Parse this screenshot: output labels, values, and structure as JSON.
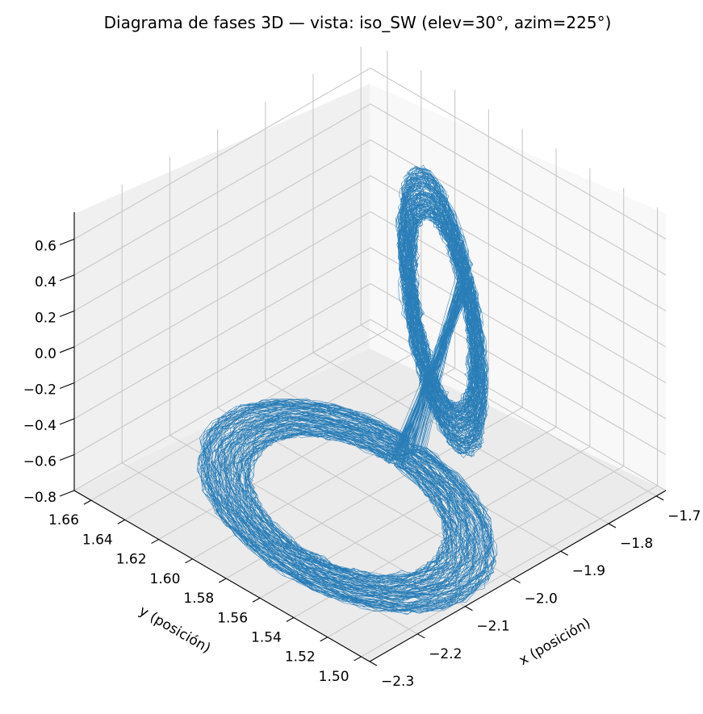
{
  "chart_data": {
    "type": "line",
    "projection": "3d",
    "title": "Diagrama de fases 3D — vista: iso_SW (elev=30°, azim=225°)",
    "view": {
      "elev": 30,
      "azim": 225
    },
    "xlabel": "x (posición)",
    "ylabel": "y (posición)",
    "zlabel": "",
    "xlim": [
      -2.3,
      -1.68
    ],
    "ylim": [
      1.495,
      1.67
    ],
    "zlim": [
      -0.8,
      0.75
    ],
    "xticks": [
      "−2.3",
      "−2.2",
      "−2.1",
      "−2.0",
      "−1.9",
      "−1.8",
      "−1.7"
    ],
    "yticks": [
      "1.50",
      "1.52",
      "1.54",
      "1.56",
      "1.58",
      "1.60",
      "1.62",
      "1.64",
      "1.66"
    ],
    "zticks": [
      "−0.8",
      "−0.6",
      "−0.4",
      "−0.2",
      "0.0",
      "0.2",
      "0.4",
      "0.6"
    ],
    "grid": true,
    "line_color": "#1f77b4",
    "series": [
      {
        "description_lobes": [
          {
            "x_center": -1.82,
            "y_center": 1.6,
            "z_range": [
              -0.7,
              0.62
            ]
          },
          {
            "x_center": -2.12,
            "y_center": 1.55,
            "z_range": [
              -0.78,
              -0.5
            ]
          }
        ],
        "points_estimated": "chaotic trajectory sampled densely across both lobes"
      }
    ]
  }
}
